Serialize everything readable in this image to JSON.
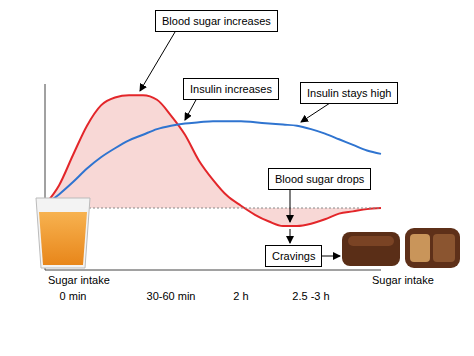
{
  "chart_data": {
    "type": "line",
    "categories": [
      null,
      null,
      "0 min",
      null,
      null,
      null,
      null,
      null,
      null,
      "30-60 min",
      null,
      null,
      null,
      null,
      "2 h",
      null,
      null,
      null,
      null,
      "2.5 -3 h",
      null,
      null,
      null,
      null,
      null
    ],
    "series": [
      {
        "type": "area",
        "color": "#e3262a",
        "values": [
          3,
          20,
          47,
          73,
          91,
          98,
          100,
          100,
          96,
          82,
          65,
          42,
          25,
          11,
          2,
          -6,
          -12,
          -16,
          -16,
          -14,
          -10,
          -5,
          -3,
          -1,
          0
        ]
      },
      {
        "type": "line",
        "color": "#2f74d0",
        "values": [
          3,
          12,
          23,
          35,
          45,
          53,
          60,
          65,
          70,
          73,
          75,
          76,
          77,
          77,
          77,
          76,
          75,
          74,
          73,
          70,
          66,
          61,
          56,
          51,
          48
        ]
      }
    ],
    "baseline": 0,
    "ylim": [
      -55,
      110
    ],
    "yticks": [],
    "grid": false,
    "tick_labels": "x",
    "annotations": [
      "Blood sugar increases",
      "Insulin increases",
      "Insulin stays high",
      "Blood sugar drops",
      "Cravings",
      "Sugar intake",
      "Sugar intake"
    ]
  }
}
